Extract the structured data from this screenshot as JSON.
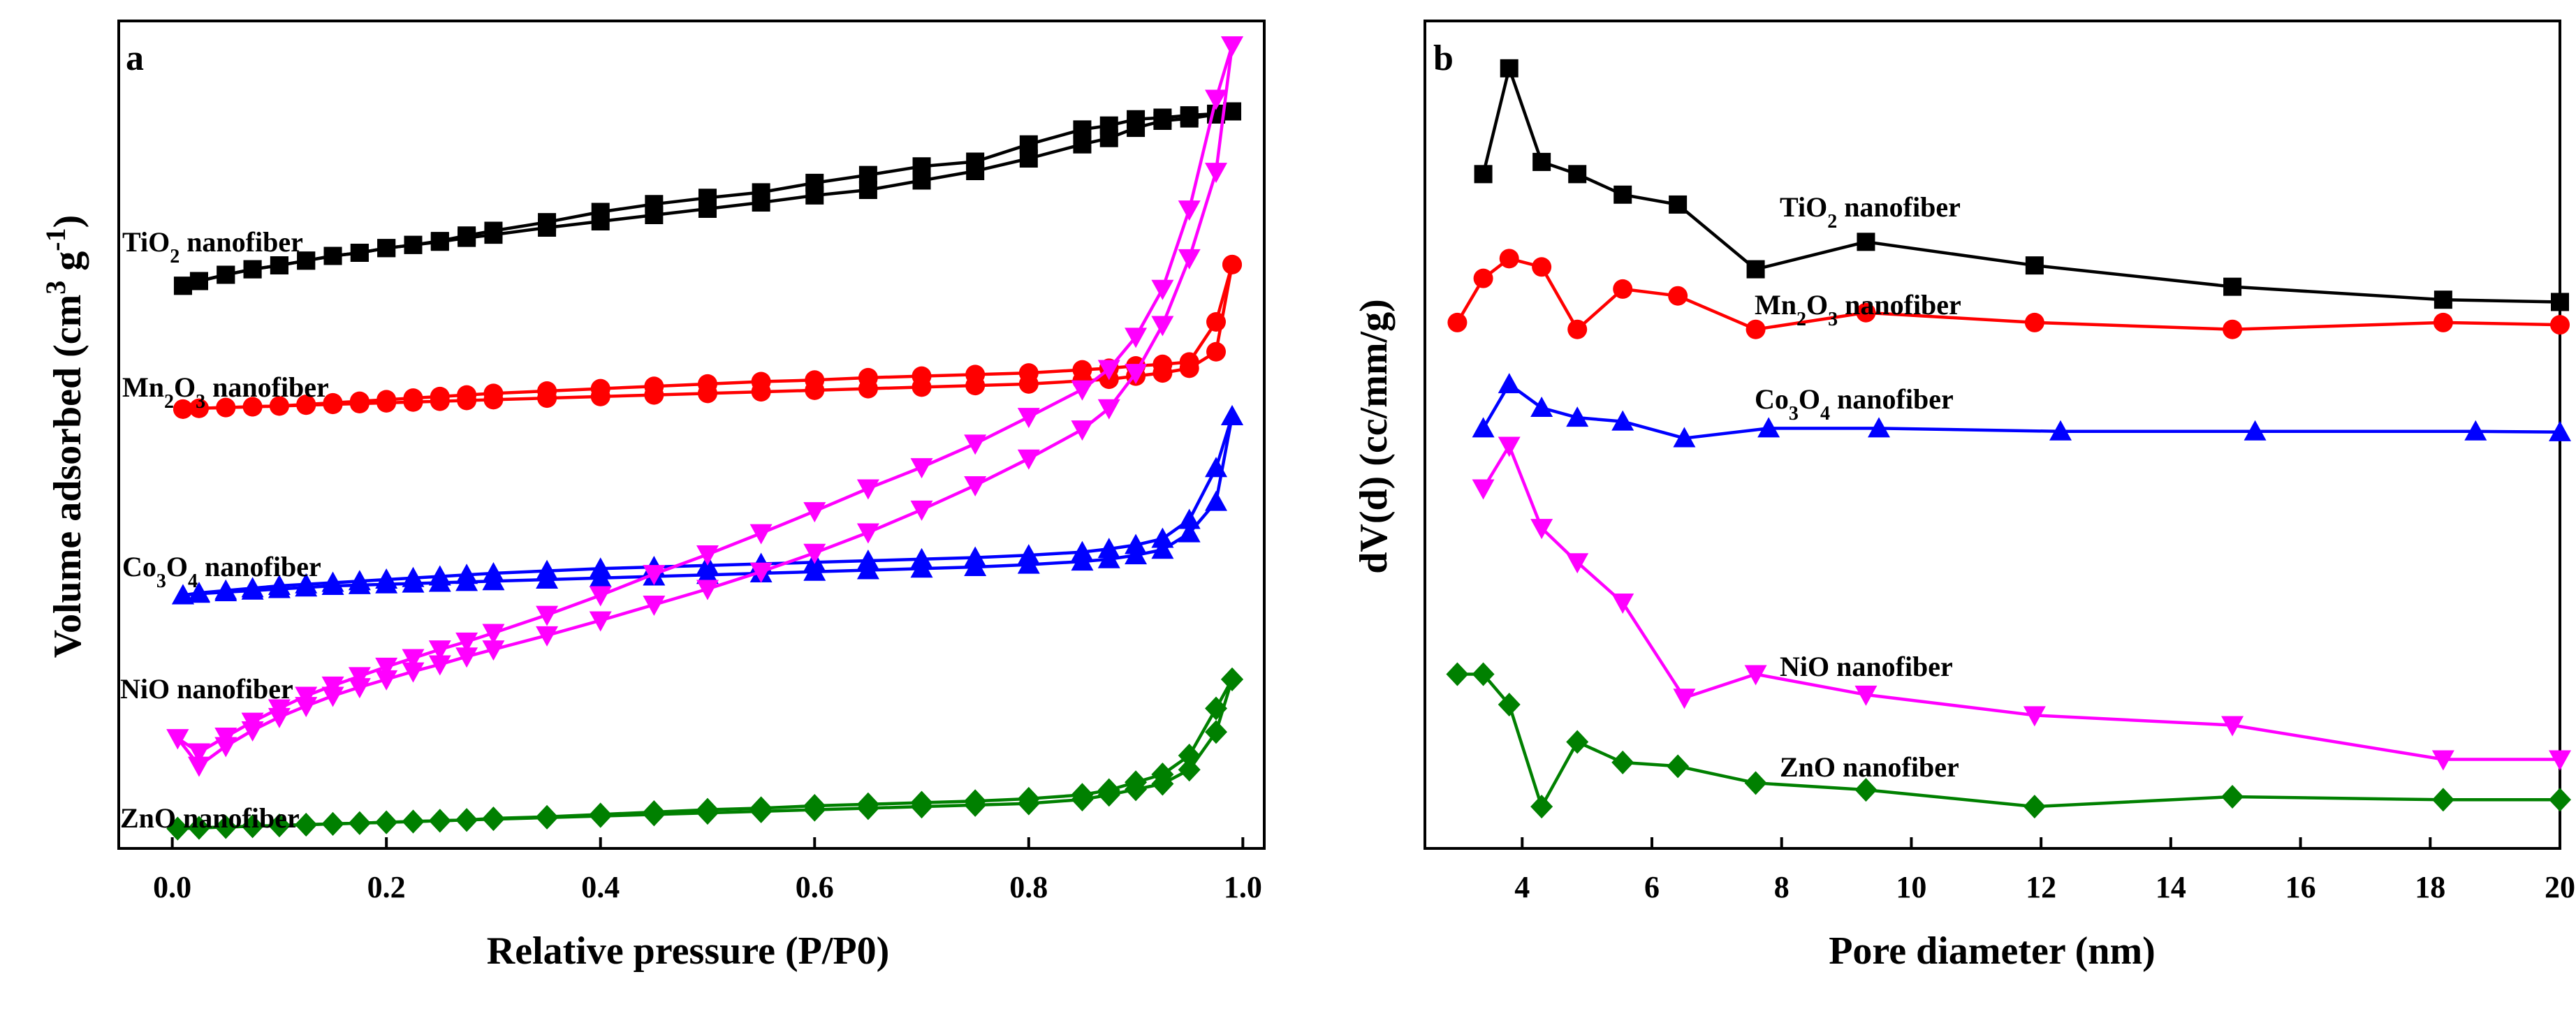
{
  "chart_data": [
    {
      "type": "line",
      "panel": "a",
      "xlabel": "Relative pressure (P/P0)",
      "ylabel": "Volume adsorbed (cm",
      "ylabel_sup1": "3",
      "ylabel_mid": " g",
      "ylabel_sup2": "-1",
      "ylabel_end": ")",
      "xlim": [
        -0.05,
        1.02
      ],
      "ylim": [
        0,
        100
      ],
      "xticks": [
        0.0,
        0.2,
        0.4,
        0.6,
        0.8,
        1.0
      ],
      "xtick_labels": [
        "0.0",
        "0.2",
        "0.4",
        "0.6",
        "0.8",
        "1.0"
      ],
      "series": [
        {
          "name": "TiO2 nanofiber",
          "label_parts": [
            "TiO",
            "2",
            " nanofiber"
          ],
          "color": "#000000",
          "marker": "square",
          "x": [
            0.01,
            0.025,
            0.05,
            0.075,
            0.1,
            0.125,
            0.15,
            0.175,
            0.2,
            0.225,
            0.25,
            0.275,
            0.3,
            0.35,
            0.4,
            0.45,
            0.5,
            0.55,
            0.6,
            0.65,
            0.7,
            0.75,
            0.8,
            0.85,
            0.875,
            0.9,
            0.925,
            0.95,
            0.975,
            0.99
          ],
          "adsorption": [
            69.4,
            70.0,
            70.8,
            71.5,
            72.0,
            72.6,
            73.2,
            73.6,
            74.2,
            74.6,
            75.0,
            75.5,
            75.9,
            76.8,
            77.6,
            78.4,
            79.2,
            80.0,
            80.9,
            81.6,
            82.8,
            84.0,
            85.6,
            87.4,
            88.2,
            89.5,
            90.4,
            90.7,
            91.2,
            91.6
          ],
          "desorption": [
            69.4,
            70.0,
            70.8,
            71.5,
            72.0,
            72.6,
            73.2,
            73.6,
            74.2,
            74.6,
            75.1,
            75.8,
            76.4,
            77.5,
            78.8,
            79.8,
            80.6,
            81.3,
            82.5,
            83.5,
            84.6,
            85.2,
            87.4,
            89.3,
            89.8,
            90.6,
            90.8,
            91.1,
            91.3,
            91.6
          ]
        },
        {
          "name": "Mn2O3 nanofiber",
          "label_parts": [
            "Mn",
            "2",
            "O",
            "3",
            " nanofiber"
          ],
          "color": "#ff0000",
          "marker": "circle",
          "x": [
            0.01,
            0.025,
            0.05,
            0.075,
            0.1,
            0.125,
            0.15,
            0.175,
            0.2,
            0.225,
            0.25,
            0.275,
            0.3,
            0.35,
            0.4,
            0.45,
            0.5,
            0.55,
            0.6,
            0.65,
            0.7,
            0.75,
            0.8,
            0.85,
            0.875,
            0.9,
            0.925,
            0.95,
            0.975,
            0.99
          ],
          "adsorption": [
            53.7,
            53.8,
            53.9,
            54.0,
            54.1,
            54.2,
            54.3,
            54.4,
            54.5,
            54.6,
            54.7,
            54.8,
            54.9,
            55.1,
            55.3,
            55.5,
            55.7,
            55.9,
            56.1,
            56.3,
            56.5,
            56.7,
            56.9,
            57.3,
            57.5,
            57.9,
            58.3,
            58.9,
            61.0,
            72.1
          ],
          "desorption": [
            53.7,
            53.8,
            53.9,
            54.0,
            54.1,
            54.3,
            54.5,
            54.7,
            54.9,
            55.1,
            55.3,
            55.5,
            55.7,
            56.0,
            56.3,
            56.6,
            56.9,
            57.2,
            57.4,
            57.7,
            57.9,
            58.1,
            58.3,
            58.7,
            58.9,
            59.2,
            59.4,
            59.7,
            64.8,
            72.1
          ]
        },
        {
          "name": "Co3O4 nanofiber",
          "label_parts": [
            "Co",
            "3",
            "O",
            "4",
            " nanofiber"
          ],
          "color": "#0000ff",
          "marker": "triangle-up",
          "x": [
            0.01,
            0.025,
            0.05,
            0.075,
            0.1,
            0.125,
            0.15,
            0.175,
            0.2,
            0.225,
            0.25,
            0.275,
            0.3,
            0.35,
            0.4,
            0.45,
            0.5,
            0.55,
            0.6,
            0.65,
            0.7,
            0.75,
            0.8,
            0.85,
            0.875,
            0.9,
            0.925,
            0.95,
            0.975,
            0.99
          ],
          "adsorption": [
            30.0,
            30.2,
            30.4,
            30.6,
            30.8,
            31.0,
            31.2,
            31.3,
            31.4,
            31.5,
            31.6,
            31.7,
            31.8,
            32.0,
            32.2,
            32.4,
            32.6,
            32.8,
            33.0,
            33.2,
            33.4,
            33.6,
            33.9,
            34.3,
            34.6,
            35.1,
            35.8,
            37.9,
            41.9,
            52.8
          ],
          "desorption": [
            30.0,
            30.3,
            30.6,
            30.9,
            31.2,
            31.4,
            31.6,
            31.8,
            32.0,
            32.2,
            32.4,
            32.6,
            32.8,
            33.1,
            33.4,
            33.6,
            33.8,
            34.0,
            34.2,
            34.4,
            34.6,
            34.8,
            35.1,
            35.5,
            35.9,
            36.4,
            37.2,
            39.6,
            46.2,
            52.8
          ]
        },
        {
          "name": "NiO nanofiber",
          "label_parts": [
            "NiO nanofiber"
          ],
          "color": "#ff00ff",
          "marker": "triangle-down",
          "x": [
            0.005,
            0.025,
            0.05,
            0.075,
            0.1,
            0.125,
            0.15,
            0.175,
            0.2,
            0.225,
            0.25,
            0.275,
            0.3,
            0.35,
            0.4,
            0.45,
            0.5,
            0.55,
            0.6,
            0.65,
            0.7,
            0.75,
            0.8,
            0.85,
            0.875,
            0.9,
            0.925,
            0.95,
            0.975,
            0.99
          ],
          "adsorption": [
            11.8,
            8.3,
            10.8,
            12.8,
            14.5,
            15.9,
            17.2,
            18.3,
            19.3,
            20.3,
            21.2,
            22.2,
            23.1,
            24.9,
            26.8,
            28.8,
            30.8,
            33.0,
            35.4,
            38.0,
            40.9,
            44.0,
            47.4,
            51.1,
            53.8,
            58.3,
            64.4,
            72.9,
            83.9,
            100.0
          ],
          "desorption": [
            11.8,
            10.0,
            12.0,
            13.9,
            15.6,
            17.2,
            18.5,
            19.7,
            20.9,
            22.0,
            23.1,
            24.1,
            25.2,
            27.5,
            30.0,
            32.7,
            35.2,
            37.9,
            40.7,
            43.6,
            46.3,
            49.3,
            52.7,
            56.2,
            58.8,
            62.9,
            69.0,
            79.1,
            93.2,
            100.0
          ]
        },
        {
          "name": "ZnO nanofiber",
          "label_parts": [
            "ZnO nanofiber"
          ],
          "color": "#008000",
          "marker": "diamond",
          "x": [
            0.005,
            0.025,
            0.05,
            0.075,
            0.1,
            0.125,
            0.15,
            0.175,
            0.2,
            0.225,
            0.25,
            0.275,
            0.3,
            0.35,
            0.4,
            0.45,
            0.5,
            0.55,
            0.6,
            0.65,
            0.7,
            0.75,
            0.8,
            0.85,
            0.875,
            0.9,
            0.925,
            0.95,
            0.975,
            0.99
          ],
          "adsorption": [
            0.3,
            0.4,
            0.5,
            0.6,
            0.7,
            0.8,
            0.9,
            1.0,
            1.1,
            1.2,
            1.3,
            1.4,
            1.5,
            1.7,
            1.9,
            2.1,
            2.3,
            2.5,
            2.7,
            2.9,
            3.1,
            3.3,
            3.5,
            4.0,
            4.6,
            5.3,
            6.0,
            7.8,
            12.6,
            19.3
          ],
          "desorption": [
            0.3,
            0.4,
            0.5,
            0.6,
            0.7,
            0.8,
            0.9,
            1.0,
            1.1,
            1.2,
            1.3,
            1.4,
            1.6,
            1.8,
            2.1,
            2.4,
            2.7,
            2.9,
            3.2,
            3.4,
            3.6,
            3.8,
            4.1,
            4.6,
            5.2,
            6.2,
            7.2,
            9.6,
            15.6,
            19.3
          ]
        }
      ]
    },
    {
      "type": "line",
      "panel": "b",
      "xlabel": "Pore diameter (nm)",
      "ylabel": "dV(d) (cc/mm/g)",
      "xlim": [
        2.5,
        20
      ],
      "ylim": [
        0,
        100
      ],
      "xticks": [
        4,
        6,
        8,
        10,
        12,
        14,
        16,
        18,
        20
      ],
      "xtick_labels": [
        "4",
        "6",
        "8",
        "10",
        "12",
        "14",
        "16",
        "18",
        "20"
      ],
      "series": [
        {
          "name": "TiO2 nanofiber",
          "label_parts": [
            "TiO",
            "2",
            " nanofiber"
          ],
          "color": "#000000",
          "marker": "square",
          "x": [
            3.4,
            3.8,
            4.3,
            4.85,
            5.55,
            6.4,
            7.6,
            9.3,
            11.9,
            14.95,
            18.2,
            20.0
          ],
          "y": [
            86.3,
            100.2,
            87.9,
            86.3,
            83.6,
            82.3,
            73.8,
            77.4,
            74.3,
            71.5,
            69.8,
            69.5
          ]
        },
        {
          "name": "Mn2O3 nanofiber",
          "label_parts": [
            "Mn",
            "2",
            "O",
            "3",
            " nanofiber"
          ],
          "color": "#ff0000",
          "marker": "circle",
          "x": [
            3.0,
            3.4,
            3.8,
            4.3,
            4.85,
            5.55,
            6.4,
            7.6,
            9.3,
            11.9,
            14.95,
            18.2,
            20.0
          ],
          "y": [
            66.8,
            72.6,
            75.2,
            74.1,
            65.9,
            71.2,
            70.3,
            65.9,
            68.1,
            66.8,
            65.9,
            66.8,
            66.5
          ]
        },
        {
          "name": "Co3O4 nanofiber",
          "label_parts": [
            "Co",
            "3",
            "O",
            "4",
            " nanofiber"
          ],
          "color": "#0000ff",
          "marker": "triangle-up",
          "x": [
            3.4,
            3.8,
            4.3,
            4.85,
            5.55,
            6.5,
            7.8,
            9.5,
            12.3,
            15.3,
            18.7,
            20.0
          ],
          "y": [
            52.9,
            58.7,
            55.6,
            54.3,
            53.8,
            51.6,
            52.9,
            52.9,
            52.5,
            52.5,
            52.5,
            52.4
          ]
        },
        {
          "name": "NiO nanofiber",
          "label_parts": [
            "NiO nanofiber"
          ],
          "color": "#ff00ff",
          "marker": "triangle-down",
          "x": [
            3.4,
            3.8,
            4.3,
            4.85,
            5.55,
            6.5,
            7.6,
            9.3,
            11.9,
            14.95,
            18.2,
            20.0
          ],
          "y": [
            45.0,
            50.6,
            39.8,
            35.3,
            30.0,
            17.5,
            20.6,
            17.9,
            15.2,
            13.9,
            9.4,
            9.4
          ]
        },
        {
          "name": "ZnO nanofiber",
          "label_parts": [
            "ZnO nanofiber"
          ],
          "color": "#008000",
          "marker": "diamond",
          "x": [
            3.0,
            3.4,
            3.8,
            4.3,
            4.85,
            5.55,
            6.4,
            7.6,
            9.3,
            11.9,
            14.95,
            18.2,
            20.0
          ],
          "y": [
            20.6,
            20.6,
            16.6,
            3.2,
            11.7,
            9.0,
            8.5,
            6.3,
            5.4,
            3.2,
            4.5,
            4.1,
            4.1
          ]
        }
      ]
    }
  ]
}
